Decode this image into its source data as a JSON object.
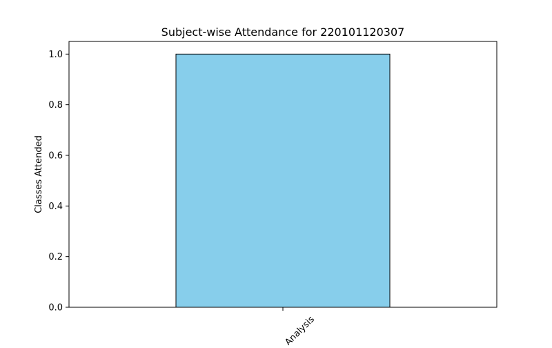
{
  "chart_data": {
    "type": "bar",
    "title": "Subject-wise Attendance for 220101120307",
    "xlabel": "",
    "ylabel": "Classes Attended",
    "categories": [
      "Analysis"
    ],
    "values": [
      1
    ],
    "ylim": [
      0,
      1.05
    ],
    "yticks": [
      "0.0",
      "0.2",
      "0.4",
      "0.6",
      "0.8",
      "1.0"
    ],
    "ytick_values": [
      0,
      0.2,
      0.4,
      0.6,
      0.8,
      1.0
    ],
    "grid": false,
    "legend": "none",
    "bar_color": "#87ceeb",
    "edge_color": "#000000"
  }
}
